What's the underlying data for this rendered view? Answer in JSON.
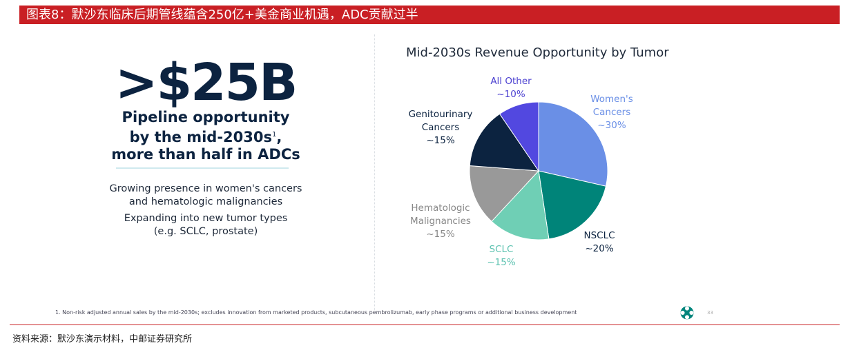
{
  "header": {
    "title": "图表8：默沙东临床后期管线蕴含250亿+美金商业机遇，ADC贡献过半"
  },
  "left": {
    "headline": ">$25B",
    "sub_lines": [
      "Pipeline opportunity",
      "by the mid-2030s",
      "more than half in ADCs"
    ],
    "sub_sup": "1",
    "sub_comma": ",",
    "bullet1_lines": [
      "Growing presence in women's cancers",
      "and hematologic malignancies"
    ],
    "bullet2_lines": [
      "Expanding into new tumor types",
      "(e.g. SCLC, prostate)"
    ]
  },
  "footnote": "1. Non-risk adjusted annual sales by the mid-2030s; excludes innovation from marketed products, subcutaneous pembrolizumab, early phase programs or additional business development",
  "page_number": "33",
  "source": "资料来源：默沙东演示材料，中邮证券研究所",
  "colors": {
    "accent_red": "#c91f24",
    "navy": "#0c2340"
  },
  "chart_data": {
    "type": "pie",
    "title": "Mid-2030s Revenue Opportunity by Tumor",
    "slices": [
      {
        "label_lines": [
          "Women's",
          "Cancers"
        ],
        "value_label": "~30%",
        "value": 30,
        "color": "#6a8fe6",
        "label_color": "#6a8fe6"
      },
      {
        "label_lines": [
          "NSCLC"
        ],
        "value_label": "~20%",
        "value": 20,
        "color": "#008479",
        "label_color": "#0c2340"
      },
      {
        "label_lines": [
          "SCLC"
        ],
        "value_label": "~15%",
        "value": 15,
        "color": "#6fcfb5",
        "label_color": "#5cc2b0"
      },
      {
        "label_lines": [
          "Hematologic",
          "Malignancies"
        ],
        "value_label": "~15%",
        "value": 15,
        "color": "#999999",
        "label_color": "#888888"
      },
      {
        "label_lines": [
          "Genitourinary",
          "Cancers"
        ],
        "value_label": "~15%",
        "value": 15,
        "color": "#0c2340",
        "label_color": "#0c2340"
      },
      {
        "label_lines": [
          "All Other"
        ],
        "value_label": "~10%",
        "value": 10,
        "color": "#5248e0",
        "label_color": "#4a3fd0"
      }
    ]
  }
}
